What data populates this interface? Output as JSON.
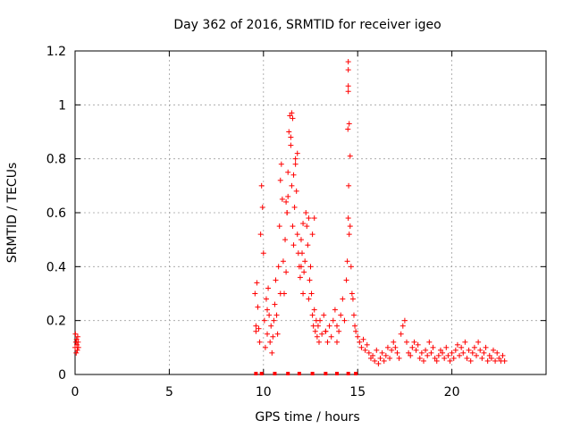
{
  "chart_data": {
    "type": "scatter",
    "title": "Day 362 of 2016, SRMTID for receiver igeo",
    "xlabel": "GPS time / hours",
    "ylabel": "SRMTID / TECUs",
    "xlim": [
      0,
      25
    ],
    "ylim": [
      0,
      1.2
    ],
    "xticks": [
      0,
      5,
      10,
      15,
      20
    ],
    "yticks": [
      0,
      0.2,
      0.4,
      0.6,
      0.8,
      1.0,
      1.2
    ],
    "xtick_labels": [
      "0",
      "5",
      "10",
      "15",
      "20"
    ],
    "ytick_labels": [
      "0",
      "0.2",
      "0.4",
      "0.6",
      "0.8",
      "1",
      "1.2"
    ],
    "grid": true,
    "marker": "+",
    "color": "#ff0000",
    "series": [
      {
        "name": "SRMTID",
        "x": [
          0.0,
          0.02,
          0.04,
          0.06,
          0.08,
          0.1,
          0.12,
          0.14,
          0.16,
          0.18,
          9.55,
          9.6,
          9.65,
          9.7,
          9.75,
          9.8,
          9.85,
          9.9,
          9.95,
          10.0,
          10.05,
          10.1,
          10.15,
          10.2,
          10.25,
          10.3,
          10.35,
          10.4,
          10.45,
          10.5,
          10.55,
          10.6,
          10.65,
          10.7,
          10.75,
          10.8,
          10.85,
          10.9,
          10.95,
          11.0,
          11.05,
          11.1,
          11.15,
          11.2,
          11.25,
          11.3,
          11.35,
          11.4,
          11.45,
          11.5,
          11.55,
          11.6,
          11.65,
          11.7,
          11.75,
          11.8,
          11.85,
          11.9,
          11.95,
          12.0,
          12.05,
          12.1,
          12.15,
          12.2,
          12.25,
          12.3,
          12.35,
          12.4,
          12.45,
          12.5,
          12.55,
          12.6,
          12.65,
          12.7,
          12.75,
          12.8,
          12.85,
          12.9,
          12.95,
          13.0,
          13.1,
          13.2,
          13.3,
          13.4,
          13.5,
          13.6,
          13.7,
          13.8,
          13.9,
          14.0,
          14.1,
          14.2,
          14.3,
          14.4,
          14.45,
          14.5,
          14.55,
          14.6,
          14.65,
          14.7,
          14.75,
          14.8,
          14.85,
          14.9,
          15.0,
          15.1,
          15.2,
          15.3,
          15.4,
          15.5,
          15.6,
          15.7,
          15.8,
          15.9,
          16.0,
          16.1,
          16.2,
          16.3,
          16.4,
          16.5,
          16.6,
          16.7,
          16.8,
          16.9,
          17.0,
          17.1,
          17.2,
          17.3,
          17.4,
          17.5,
          17.6,
          17.7,
          17.8,
          17.9,
          18.0,
          18.1,
          18.2,
          18.3,
          18.4,
          18.5,
          18.6,
          18.7,
          18.8,
          18.9,
          19.0,
          19.1,
          19.2,
          19.3,
          19.4,
          19.5,
          19.6,
          19.7,
          19.8,
          19.9,
          20.0,
          20.1,
          20.2,
          20.3,
          20.4,
          20.5,
          20.6,
          20.7,
          20.8,
          20.9,
          21.0,
          21.1,
          21.2,
          21.3,
          21.4,
          21.5,
          21.6,
          21.7,
          21.8,
          21.9,
          22.0,
          22.1,
          22.2,
          22.3,
          22.4,
          22.5,
          22.6,
          22.7,
          22.8,
          9.6,
          10.2,
          10.9,
          11.3,
          11.6,
          12.1,
          12.7,
          13.3,
          13.9,
          14.5,
          14.5,
          14.5,
          14.5,
          14.55,
          14.6,
          14.48,
          14.52,
          11.5,
          11.55,
          11.45,
          11.2,
          11.25,
          11.7,
          11.8,
          12.0,
          12.4,
          12.6
        ],
        "y": [
          0.1,
          0.15,
          0.12,
          0.08,
          0.13,
          0.11,
          0.09,
          0.14,
          0.12,
          0.1,
          0.3,
          0.18,
          0.34,
          0.25,
          0.17,
          0.12,
          0.52,
          0.7,
          0.62,
          0.45,
          0.2,
          0.1,
          0.28,
          0.15,
          0.32,
          0.22,
          0.12,
          0.18,
          0.08,
          0.14,
          0.2,
          0.26,
          0.35,
          0.22,
          0.15,
          0.4,
          0.55,
          0.72,
          0.78,
          0.65,
          0.42,
          0.3,
          0.5,
          0.38,
          0.6,
          0.75,
          0.9,
          0.96,
          0.85,
          0.7,
          0.55,
          0.48,
          0.62,
          0.8,
          0.68,
          0.52,
          0.45,
          0.4,
          0.36,
          0.5,
          0.45,
          0.3,
          0.38,
          0.42,
          0.6,
          0.55,
          0.48,
          0.28,
          0.35,
          0.4,
          0.3,
          0.22,
          0.18,
          0.24,
          0.16,
          0.2,
          0.14,
          0.18,
          0.12,
          0.2,
          0.15,
          0.22,
          0.16,
          0.12,
          0.18,
          0.14,
          0.2,
          0.24,
          0.18,
          0.16,
          0.22,
          0.28,
          0.2,
          0.35,
          0.42,
          0.58,
          0.52,
          0.55,
          0.4,
          0.3,
          0.28,
          0.22,
          0.18,
          0.16,
          0.14,
          0.12,
          0.1,
          0.13,
          0.09,
          0.11,
          0.08,
          0.06,
          0.07,
          0.05,
          0.09,
          0.04,
          0.06,
          0.08,
          0.05,
          0.07,
          0.1,
          0.06,
          0.09,
          0.12,
          0.1,
          0.08,
          0.06,
          0.15,
          0.18,
          0.2,
          0.12,
          0.08,
          0.07,
          0.1,
          0.12,
          0.09,
          0.11,
          0.06,
          0.08,
          0.05,
          0.09,
          0.07,
          0.12,
          0.08,
          0.1,
          0.06,
          0.05,
          0.07,
          0.09,
          0.08,
          0.06,
          0.1,
          0.07,
          0.05,
          0.08,
          0.06,
          0.09,
          0.11,
          0.07,
          0.1,
          0.08,
          0.12,
          0.06,
          0.09,
          0.05,
          0.08,
          0.1,
          0.07,
          0.12,
          0.09,
          0.06,
          0.08,
          0.1,
          0.05,
          0.07,
          0.06,
          0.09,
          0.05,
          0.08,
          0.06,
          0.05,
          0.07,
          0.05,
          0.16,
          0.24,
          0.3,
          0.66,
          0.74,
          0.56,
          0.58,
          0.16,
          0.12,
          1.16,
          1.13,
          1.07,
          1.05,
          0.93,
          0.81,
          0.91,
          0.7,
          0.97,
          0.95,
          0.88,
          0.64,
          0.6,
          0.78,
          0.82,
          0.4,
          0.58,
          0.52
        ],
        "markers_at_zero_x": [
          9.6,
          9.9,
          10.6,
          11.3,
          11.9,
          12.6,
          13.3,
          13.9,
          14.5,
          14.9
        ]
      }
    ]
  }
}
